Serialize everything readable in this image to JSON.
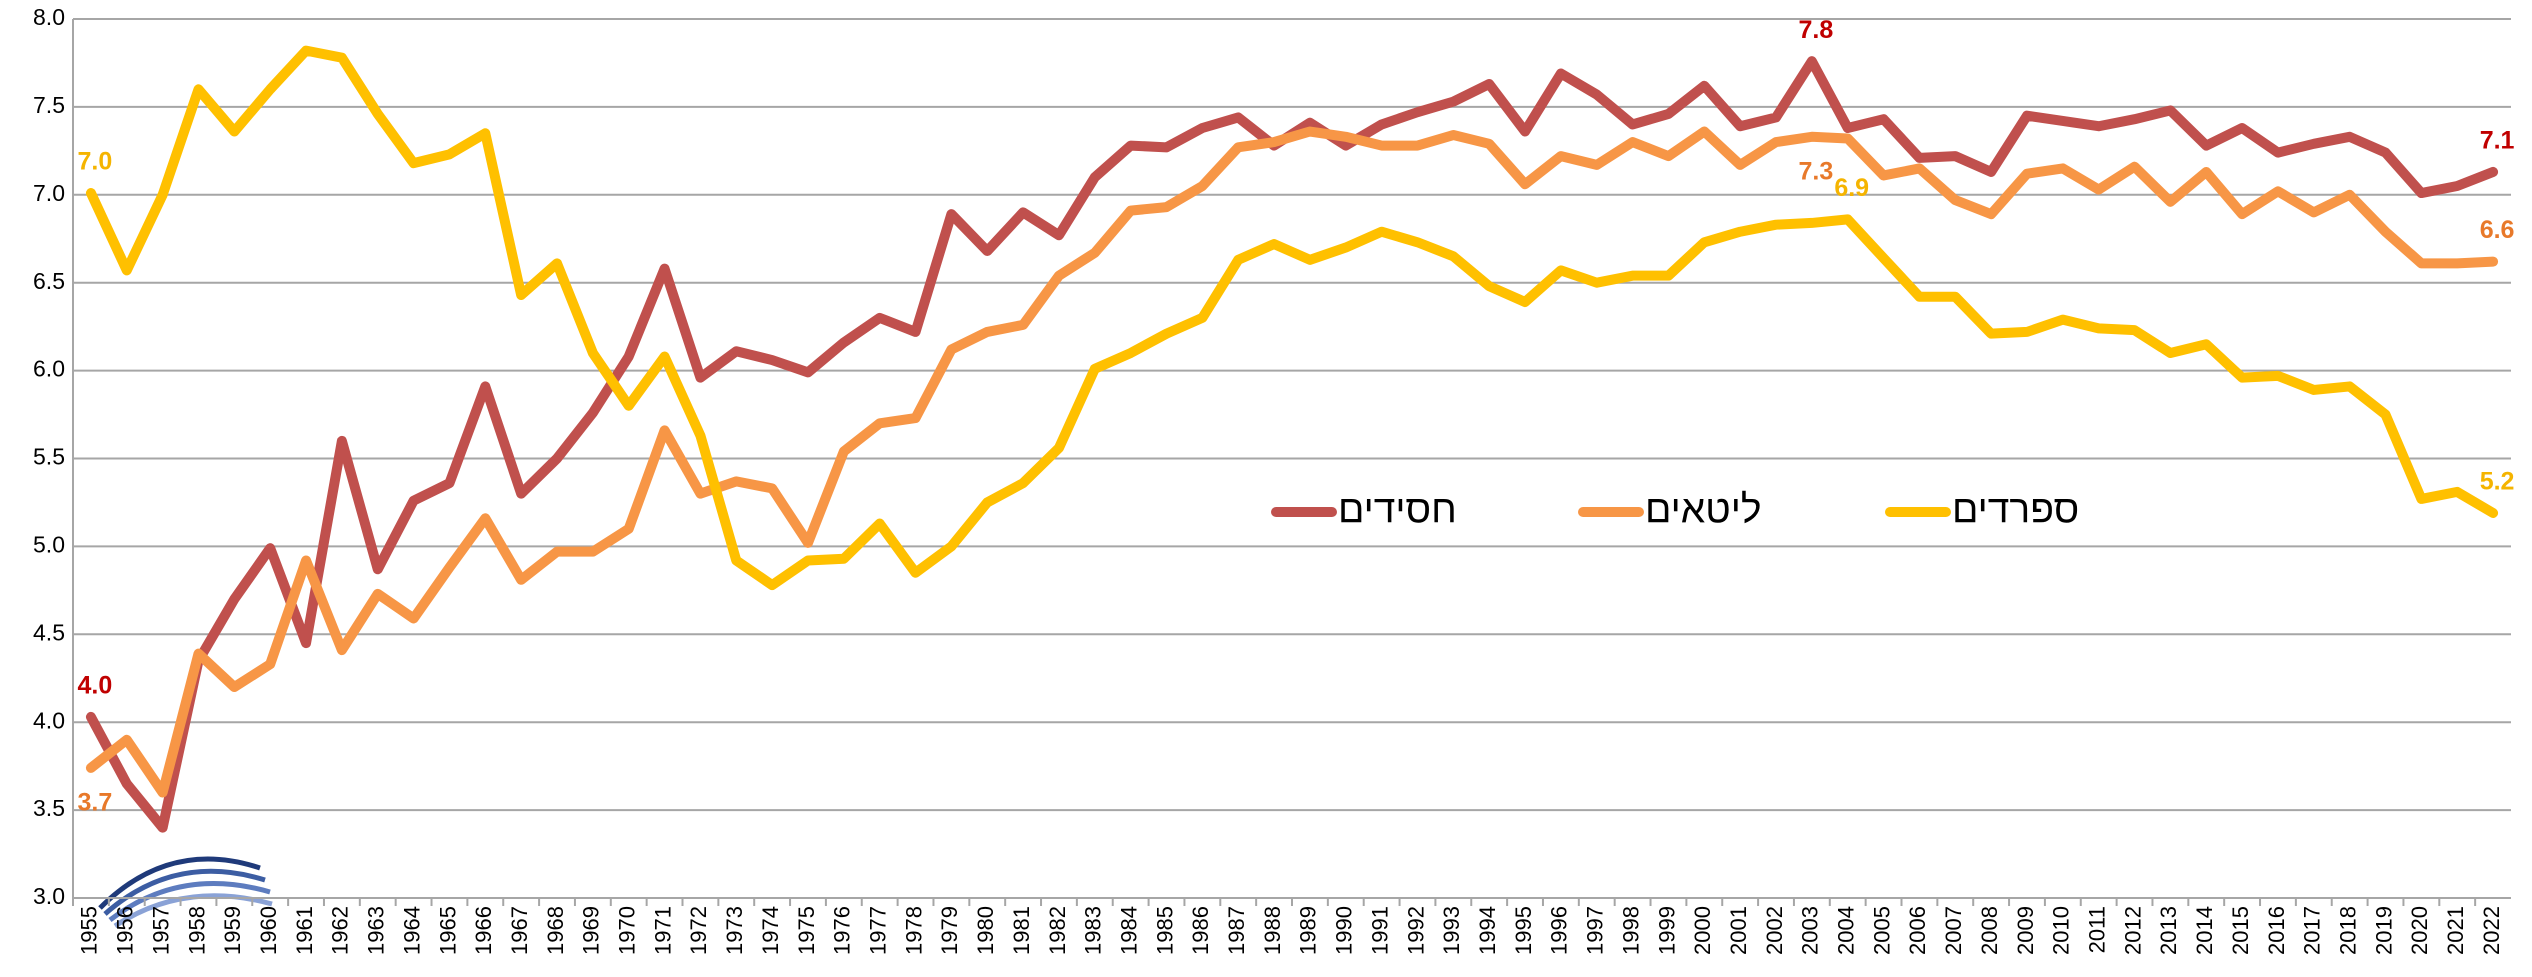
{
  "chart_data": {
    "type": "line",
    "categories": [
      "1955",
      "1956",
      "1957",
      "1958",
      "1959",
      "1960",
      "1961",
      "1962",
      "1963",
      "1964",
      "1965",
      "1966",
      "1967",
      "1968",
      "1969",
      "1970",
      "1971",
      "1972",
      "1973",
      "1974",
      "1975",
      "1976",
      "1977",
      "1978",
      "1979",
      "1980",
      "1981",
      "1982",
      "1983",
      "1984",
      "1985",
      "1986",
      "1987",
      "1988",
      "1989",
      "1990",
      "1991",
      "1992",
      "1993",
      "1994",
      "1995",
      "1996",
      "1997",
      "1998",
      "1999",
      "2000",
      "2001",
      "2002",
      "2003",
      "2004",
      "2005",
      "2006",
      "2007",
      "2008",
      "2009",
      "2010",
      "2011",
      "2012",
      "2013",
      "2014",
      "2015",
      "2016",
      "2017",
      "2018",
      "2019",
      "2020",
      "2021",
      "2022"
    ],
    "ylim": [
      3,
      8
    ],
    "yticks": [
      {
        "value": 3,
        "label": "3.0"
      },
      {
        "value": 3.5,
        "label": "3.5"
      },
      {
        "value": 4,
        "label": "4.0"
      },
      {
        "value": 4.5,
        "label": "4.5"
      },
      {
        "value": 5,
        "label": "5.0"
      },
      {
        "value": 5.5,
        "label": "5.5"
      },
      {
        "value": 6,
        "label": "6.0"
      },
      {
        "value": 6.5,
        "label": "6.5"
      },
      {
        "value": 7,
        "label": "7.0"
      },
      {
        "value": 7.5,
        "label": "7.5"
      },
      {
        "value": 8,
        "label": "8.0"
      }
    ],
    "grid": true,
    "legend_position": "center",
    "series": [
      {
        "name": "חסידים",
        "color": "#c0504d",
        "label_color": "#c00000",
        "values": [
          4.03,
          3.65,
          3.4,
          4.35,
          4.7,
          4.99,
          4.45,
          5.6,
          4.87,
          5.26,
          5.36,
          5.91,
          5.3,
          5.5,
          5.76,
          6.08,
          6.58,
          5.96,
          6.11,
          6.06,
          5.99,
          6.16,
          6.3,
          6.22,
          6.89,
          6.68,
          6.9,
          6.77,
          7.1,
          7.28,
          7.27,
          7.38,
          7.44,
          7.28,
          7.41,
          7.28,
          7.4,
          7.47,
          7.53,
          7.63,
          7.36,
          7.69,
          7.57,
          7.4,
          7.46,
          7.62,
          7.39,
          7.44,
          7.76,
          7.38,
          7.43,
          7.21,
          7.22,
          7.13,
          7.45,
          7.42,
          7.39,
          7.43,
          7.48,
          7.28,
          7.38,
          7.24,
          7.29,
          7.33,
          7.24,
          7.01,
          7.05,
          7.13
        ],
        "value_labels": [
          "4.0",
          null,
          null,
          null,
          null,
          null,
          null,
          null,
          null,
          null,
          null,
          null,
          null,
          null,
          null,
          null,
          null,
          null,
          null,
          null,
          null,
          null,
          null,
          null,
          null,
          null,
          null,
          null,
          null,
          null,
          null,
          null,
          null,
          null,
          null,
          null,
          null,
          null,
          null,
          null,
          null,
          null,
          null,
          null,
          null,
          null,
          null,
          null,
          "7.8",
          null,
          null,
          null,
          null,
          null,
          null,
          null,
          null,
          null,
          null,
          null,
          null,
          null,
          null,
          null,
          null,
          null,
          null,
          "7.1"
        ]
      },
      {
        "name": "ליטאים",
        "color": "#f79646",
        "label_color": "#e8792a",
        "values": [
          3.74,
          3.9,
          3.6,
          4.39,
          4.2,
          4.33,
          4.92,
          4.41,
          4.73,
          4.59,
          4.88,
          5.16,
          4.81,
          4.97,
          4.97,
          5.1,
          5.66,
          5.3,
          5.37,
          5.33,
          5.02,
          5.54,
          5.7,
          5.73,
          6.12,
          6.22,
          6.26,
          6.54,
          6.67,
          6.91,
          6.93,
          7.05,
          7.27,
          7.3,
          7.36,
          7.33,
          7.28,
          7.28,
          7.34,
          7.29,
          7.06,
          7.22,
          7.17,
          7.3,
          7.22,
          7.36,
          7.17,
          7.3,
          7.33,
          7.32,
          7.11,
          7.15,
          6.97,
          6.89,
          7.12,
          7.15,
          7.03,
          7.16,
          6.96,
          7.13,
          6.89,
          7.02,
          6.9,
          7.0,
          6.79,
          6.61,
          6.61,
          6.62
        ],
        "value_labels": [
          "3.7",
          null,
          null,
          null,
          null,
          null,
          null,
          null,
          null,
          null,
          null,
          null,
          null,
          null,
          null,
          null,
          null,
          null,
          null,
          null,
          null,
          null,
          null,
          null,
          null,
          null,
          null,
          null,
          null,
          null,
          null,
          null,
          null,
          null,
          null,
          null,
          null,
          null,
          null,
          null,
          null,
          null,
          null,
          null,
          null,
          null,
          null,
          null,
          "7.3",
          null,
          null,
          null,
          null,
          null,
          null,
          null,
          null,
          null,
          null,
          null,
          null,
          null,
          null,
          null,
          null,
          null,
          null,
          "6.6"
        ]
      },
      {
        "name": "ספרדים",
        "color": "#ffc000",
        "label_color": "#f5b400",
        "values": [
          7.01,
          6.57,
          7.0,
          7.6,
          7.36,
          7.6,
          7.82,
          7.78,
          7.46,
          7.18,
          7.23,
          7.35,
          6.43,
          6.61,
          6.1,
          5.8,
          6.08,
          5.63,
          4.92,
          4.78,
          4.92,
          4.93,
          5.13,
          4.85,
          5.0,
          5.25,
          5.36,
          5.56,
          6.01,
          6.1,
          6.21,
          6.3,
          6.63,
          6.72,
          6.63,
          6.7,
          6.79,
          6.73,
          6.65,
          6.48,
          6.39,
          6.57,
          6.5,
          6.54,
          6.54,
          6.73,
          6.79,
          6.83,
          6.84,
          6.86,
          6.64,
          6.42,
          6.42,
          6.21,
          6.22,
          6.29,
          6.24,
          6.23,
          6.1,
          6.15,
          5.96,
          5.97,
          5.89,
          5.91,
          5.75,
          5.27,
          5.31,
          5.19
        ],
        "value_labels": [
          "7.0",
          null,
          null,
          null,
          null,
          null,
          null,
          null,
          null,
          null,
          null,
          null,
          null,
          null,
          null,
          null,
          null,
          null,
          null,
          null,
          null,
          null,
          null,
          null,
          null,
          null,
          null,
          null,
          null,
          null,
          null,
          null,
          null,
          null,
          null,
          null,
          null,
          null,
          null,
          null,
          null,
          null,
          null,
          null,
          null,
          null,
          null,
          null,
          null,
          "6.9",
          null,
          null,
          null,
          null,
          null,
          null,
          null,
          null,
          null,
          null,
          null,
          null,
          null,
          null,
          null,
          null,
          null,
          "5.2"
        ]
      }
    ]
  }
}
